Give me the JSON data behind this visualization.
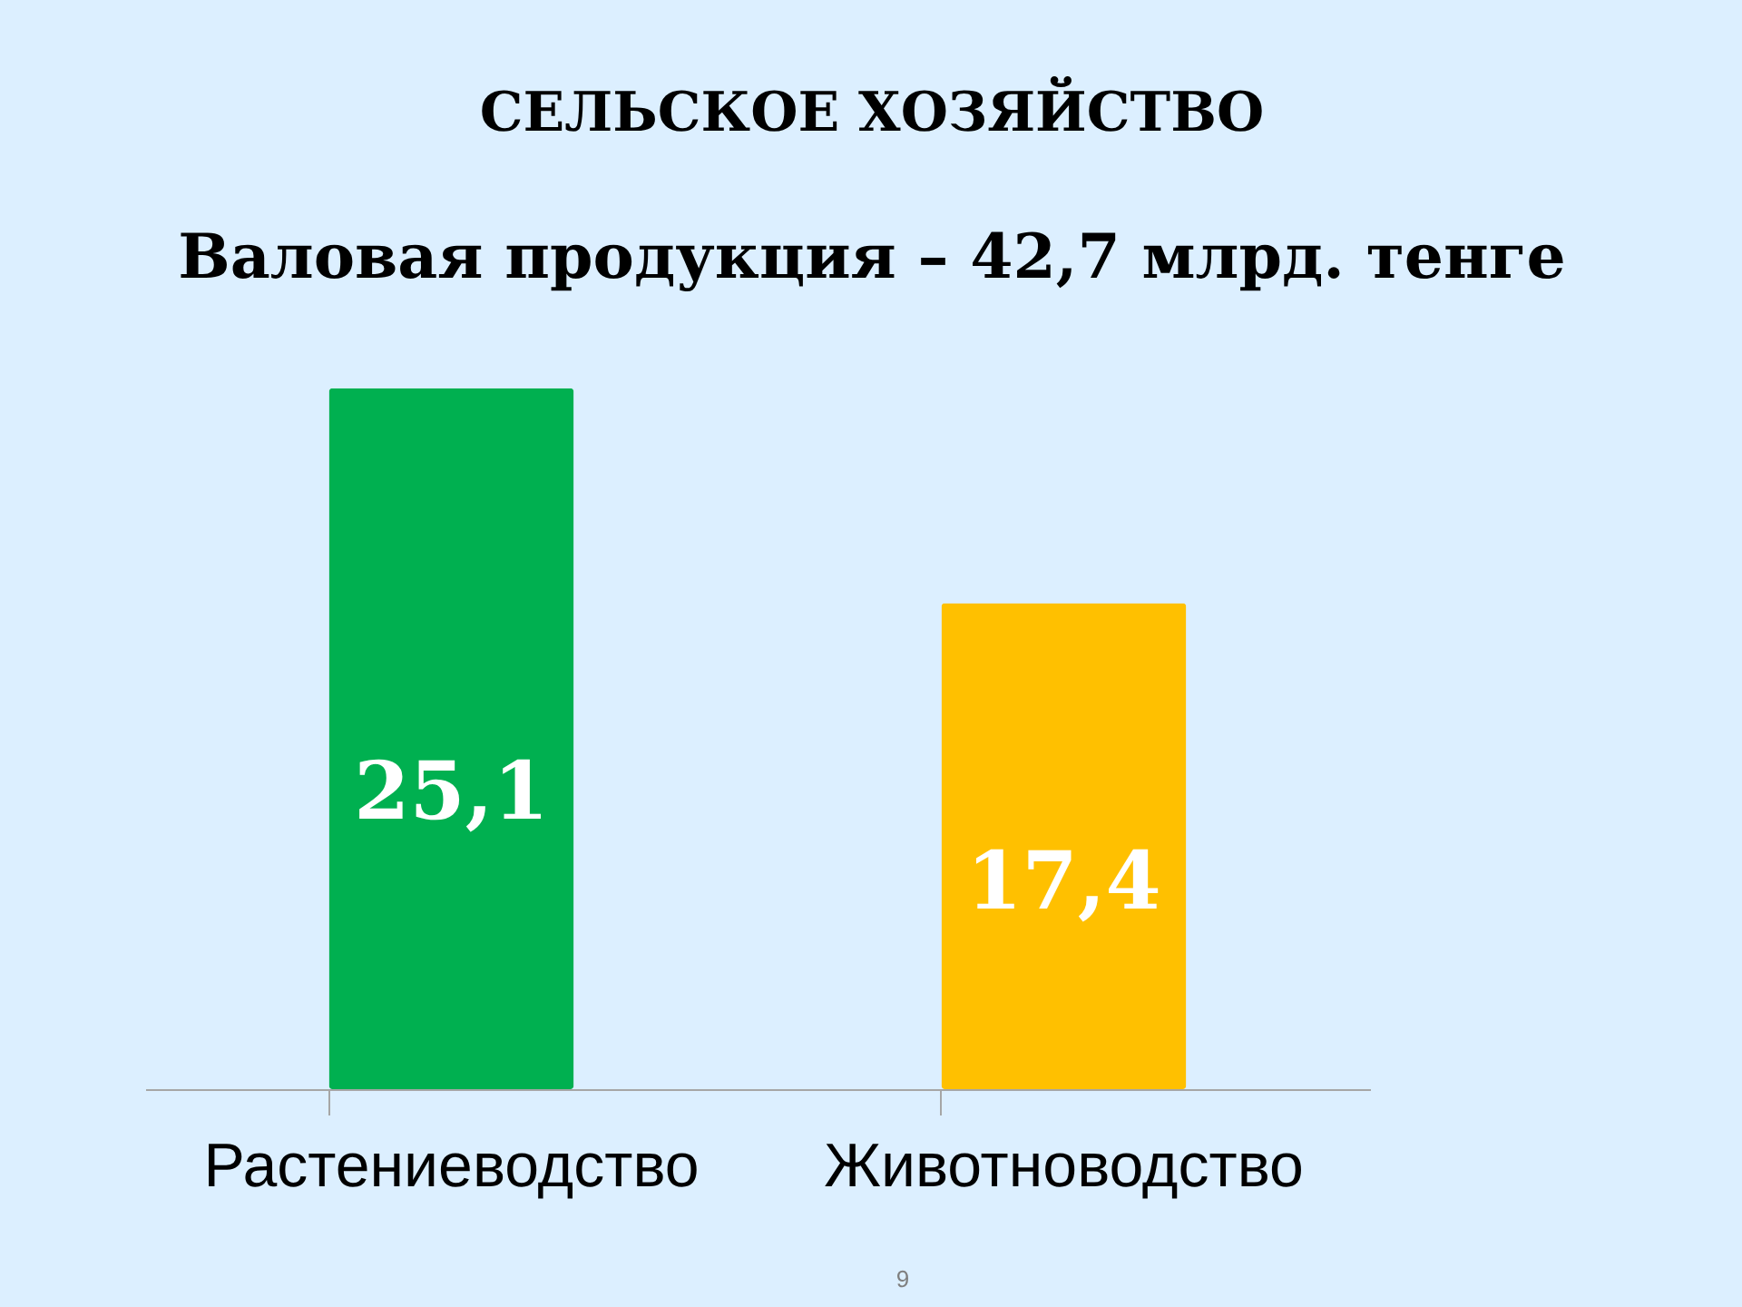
{
  "chart_data": {
    "type": "bar",
    "title": "СЕЛЬСКОЕ    ХОЗЯЙСТВО",
    "subtitle": "Валовая продукция – 42,7 млрд. тенге",
    "categories": [
      "Растениеводство",
      "Животноводство"
    ],
    "values": [
      25.1,
      17.4
    ],
    "colors": [
      "#00b050",
      "#ffc000"
    ],
    "value_labels": [
      "25,1",
      "17,4"
    ],
    "annotations": [
      "9"
    ]
  }
}
